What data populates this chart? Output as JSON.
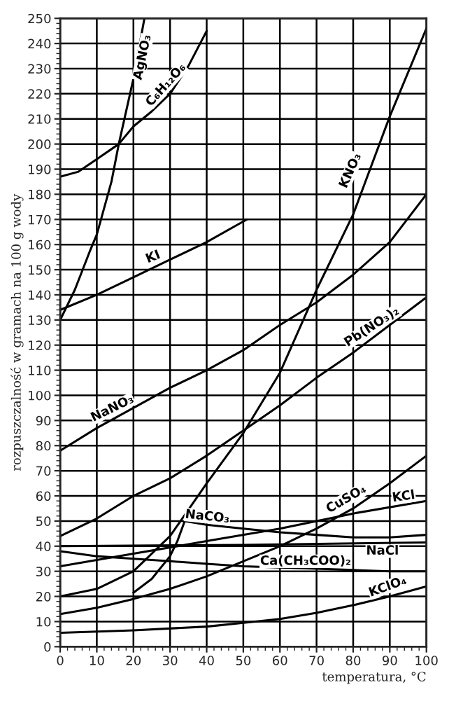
{
  "chart_data": {
    "type": "line",
    "xlabel": "temperatura, °C",
    "ylabel": "rozpuszczalność w gramach na 100 g wody",
    "xlim": [
      0,
      100
    ],
    "ylim": [
      0,
      250
    ],
    "xticks": [
      0,
      10,
      20,
      30,
      40,
      50,
      60,
      70,
      80,
      90,
      100
    ],
    "yticks": [
      0,
      10,
      20,
      30,
      40,
      50,
      60,
      70,
      80,
      90,
      100,
      110,
      120,
      130,
      140,
      150,
      160,
      170,
      180,
      190,
      200,
      210,
      220,
      230,
      240,
      250
    ],
    "grid": true,
    "marker": "none",
    "line_style": "solid",
    "series": [
      {
        "name": "AgNO₃",
        "color": "#000000",
        "x": [
          0,
          4,
          8,
          10,
          14,
          16,
          20,
          23
        ],
        "values": [
          130,
          142,
          157,
          164,
          185,
          200,
          226,
          250
        ]
      },
      {
        "name": "C₆H₁₂O₆",
        "color": "#000000",
        "x": [
          0,
          5,
          10,
          16,
          20,
          25,
          30,
          35,
          40
        ],
        "values": [
          187,
          189,
          194,
          200,
          207,
          213,
          220,
          231,
          245
        ]
      },
      {
        "name": "KNO₃",
        "color": "#000000",
        "x": [
          0,
          10,
          20,
          30,
          40,
          50,
          60,
          70,
          80,
          90,
          100
        ],
        "values": [
          20,
          23,
          30,
          44,
          65,
          85,
          109,
          142,
          172,
          211,
          246
        ]
      },
      {
        "name": "KI",
        "color": "#000000",
        "x": [
          0,
          10,
          20,
          30,
          40,
          51
        ],
        "values": [
          134,
          140,
          147,
          154,
          161,
          170
        ]
      },
      {
        "name": "NaNO₃",
        "color": "#000000",
        "x": [
          0,
          10,
          20,
          30,
          40,
          50,
          60,
          70,
          80,
          90,
          100
        ],
        "values": [
          78,
          87,
          95,
          103,
          110,
          118,
          128,
          137,
          148,
          161,
          180
        ]
      },
      {
        "name": "Pb(NO₃)₂",
        "color": "#000000",
        "x": [
          0,
          10,
          20,
          30,
          40,
          50,
          60,
          70,
          80,
          90,
          100
        ],
        "values": [
          44,
          51,
          60,
          67,
          76,
          86,
          96,
          107,
          117,
          128,
          139
        ]
      },
      {
        "name": "NaCO₃",
        "color": "#000000",
        "x": [
          20,
          25,
          30,
          32,
          34,
          40,
          50,
          60,
          70,
          80,
          90,
          100
        ],
        "values": [
          21.5,
          27,
          36,
          42,
          50,
          48.5,
          47,
          45.5,
          44.5,
          43.5,
          43.5,
          44.5
        ]
      },
      {
        "name": "CuSO₄",
        "color": "#000000",
        "x": [
          0,
          10,
          20,
          30,
          40,
          50,
          60,
          70,
          80,
          90,
          100
        ],
        "values": [
          13,
          15.5,
          19,
          23,
          28,
          34,
          40,
          47,
          55,
          65,
          76
        ]
      },
      {
        "name": "KCl",
        "color": "#000000",
        "x": [
          0,
          20,
          40,
          60,
          80,
          100
        ],
        "values": [
          32,
          37,
          42,
          47,
          53,
          58
        ]
      },
      {
        "name": "NaCl",
        "color": "#000000",
        "x": [
          0,
          50,
          100
        ],
        "values": [
          40,
          40.5,
          41.5
        ]
      },
      {
        "name": "Ca(CH₃COO)₂",
        "color": "#000000",
        "x": [
          0,
          10,
          20,
          30,
          40,
          50,
          60,
          70,
          80,
          90,
          100
        ],
        "values": [
          38,
          36,
          35,
          34,
          33,
          32,
          31.5,
          31,
          30.5,
          30,
          30
        ]
      },
      {
        "name": "KClO₄",
        "color": "#000000",
        "x": [
          0,
          20,
          40,
          50,
          60,
          70,
          80,
          90,
          100
        ],
        "values": [
          5.5,
          6.5,
          8,
          9.5,
          11,
          13.5,
          16.5,
          20,
          24
        ]
      }
    ]
  }
}
